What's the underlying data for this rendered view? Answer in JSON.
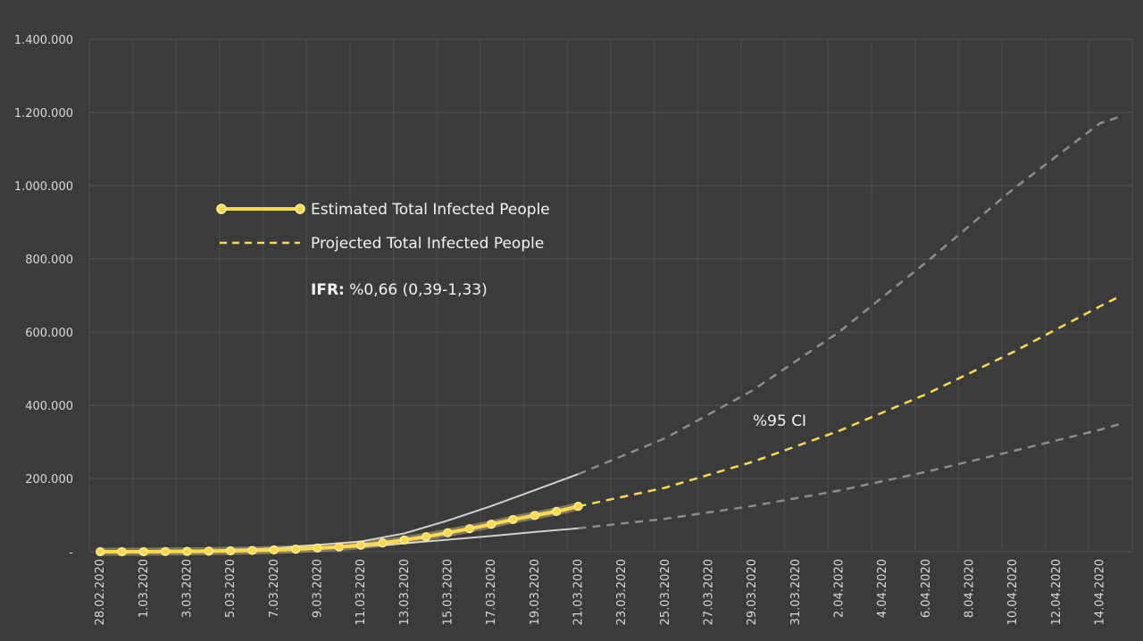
{
  "chart_data": {
    "type": "line",
    "ylim": [
      0,
      1400000
    ],
    "y_ticks": [
      {
        "value": 0,
        "label": "-"
      },
      {
        "value": 200000,
        "label": "200.000"
      },
      {
        "value": 400000,
        "label": "400.000"
      },
      {
        "value": 600000,
        "label": "600.000"
      },
      {
        "value": 800000,
        "label": "800.000"
      },
      {
        "value": 1000000,
        "label": "1.000.000"
      },
      {
        "value": 1200000,
        "label": "1.200.000"
      },
      {
        "value": 1400000,
        "label": "1.400.000"
      }
    ],
    "x_tick_labels": [
      "28.02.2020",
      "1.03.2020",
      "3.03.2020",
      "5.03.2020",
      "7.03.2020",
      "9.03.2020",
      "11.03.2020",
      "13.03.2020",
      "15.03.2020",
      "17.03.2020",
      "19.03.2020",
      "21.03.2020",
      "23.03.2020",
      "25.03.2020",
      "27.03.2020",
      "29.03.2020",
      "31.03.2020",
      "2.04.2020",
      "4.04.2020",
      "6.04.2020",
      "8.04.2020",
      "10.04.2020",
      "12.04.2020",
      "14.04.2020"
    ],
    "grid": true,
    "series": [
      {
        "name": "Estimated Total Infected People",
        "style": "solid-markers",
        "color": "#ffd94a",
        "x": [
          "28.02.2020",
          "29.02.2020",
          "1.03.2020",
          "2.03.2020",
          "3.03.2020",
          "4.03.2020",
          "5.03.2020",
          "6.03.2020",
          "7.03.2020",
          "8.03.2020",
          "9.03.2020",
          "10.03.2020",
          "11.03.2020",
          "12.03.2020",
          "13.03.2020",
          "14.03.2020",
          "15.03.2020",
          "16.03.2020",
          "17.03.2020",
          "18.03.2020",
          "19.03.2020",
          "20.03.2020",
          "21.03.2020"
        ],
        "values": [
          0,
          0,
          0,
          500,
          1000,
          1500,
          2500,
          3500,
          5000,
          7000,
          10000,
          13000,
          18000,
          24000,
          32000,
          41000,
          52000,
          63000,
          75000,
          88000,
          99000,
          110000,
          124000
        ]
      },
      {
        "name": "Projected Total Infected People",
        "style": "dashed",
        "color": "#ffd94a",
        "x": [
          "21.03.2020",
          "25.03.2020",
          "29.03.2020",
          "2.04.2020",
          "6.04.2020",
          "10.04.2020",
          "14.04.2020",
          "15.04.2020"
        ],
        "values": [
          124000,
          175000,
          245000,
          330000,
          430000,
          545000,
          670000,
          700000
        ]
      },
      {
        "name": "",
        "style": "dashed-gray",
        "color": "#8c8c8c",
        "x": [
          "21.03.2020",
          "25.03.2020",
          "29.03.2020",
          "2.04.2020",
          "6.04.2020",
          "10.04.2020",
          "14.04.2020",
          "15.04.2020"
        ],
        "values": [
          212000,
          310000,
          440000,
          600000,
          790000,
          990000,
          1170000,
          1190000
        ]
      },
      {
        "name": "",
        "style": "dashed-gray",
        "color": "#8c8c8c",
        "x": [
          "21.03.2020",
          "25.03.2020",
          "29.03.2020",
          "2.04.2020",
          "6.04.2020",
          "10.04.2020",
          "14.04.2020",
          "15.04.2020"
        ],
        "values": [
          64000,
          90000,
          125000,
          167000,
          218000,
          275000,
          333000,
          350000
        ]
      },
      {
        "name": "",
        "style": "solid-light",
        "color": "#cfcfcf",
        "x": [
          "28.02.2020",
          "3.03.2020",
          "7.03.2020",
          "11.03.2020",
          "13.03.2020",
          "15.03.2020",
          "17.03.2020",
          "19.03.2020",
          "21.03.2020"
        ],
        "values": [
          0,
          1500,
          9000,
          28000,
          50000,
          85000,
          125000,
          168000,
          212000
        ]
      },
      {
        "name": "",
        "style": "solid-light",
        "color": "#cfcfcf",
        "x": [
          "28.02.2020",
          "3.03.2020",
          "7.03.2020",
          "11.03.2020",
          "13.03.2020",
          "15.03.2020",
          "17.03.2020",
          "19.03.2020",
          "21.03.2020"
        ],
        "values": [
          0,
          1000,
          5000,
          14000,
          23000,
          33000,
          43000,
          54000,
          64000
        ]
      }
    ],
    "annotations": {
      "ifr_label": "IFR:",
      "ifr_value": "%0,66 (0,39-1,33)",
      "ci_label": "%95 CI"
    }
  }
}
